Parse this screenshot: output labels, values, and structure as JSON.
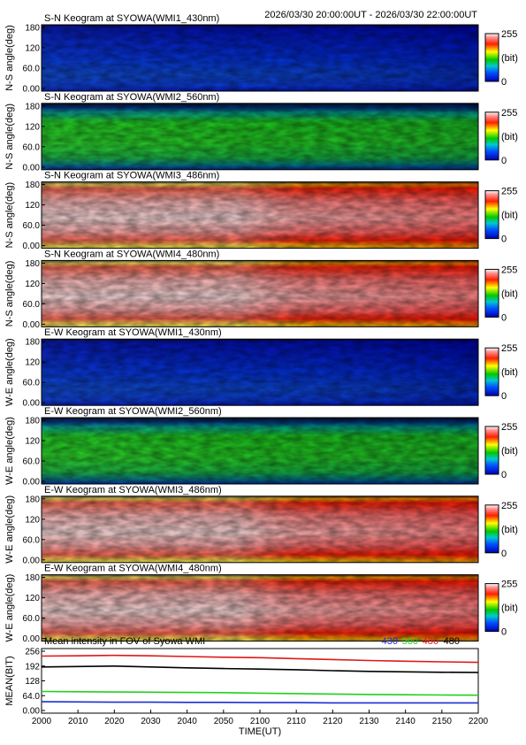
{
  "header_range": "2026/03/30 20:00:00UT - 2026/03/30 22:00:00UT",
  "colorbar": {
    "max_label": "255",
    "unit": "(bit)",
    "min_label": "0"
  },
  "panels": [
    {
      "title": "S-N Keogram at SYOWA(WMI1_430nm)",
      "ylabel": "N-S angle(deg)",
      "colormap": "blue"
    },
    {
      "title": "S-N Keogram at SYOWA(WMI2_560nm)",
      "ylabel": "N-S angle(deg)",
      "colormap": "green"
    },
    {
      "title": "S-N Keogram at SYOWA(WMI3_486nm)",
      "ylabel": "N-S angle(deg)",
      "colormap": "red"
    },
    {
      "title": "S-N Keogram at SYOWA(WMI4_480nm)",
      "ylabel": "N-S angle(deg)",
      "colormap": "red"
    },
    {
      "title": "E-W Keogram at SYOWA(WMI1_430nm)",
      "ylabel": "W-E angle(deg)",
      "colormap": "blue"
    },
    {
      "title": "E-W Keogram at SYOWA(WMI2_560nm)",
      "ylabel": "W-E angle(deg)",
      "colormap": "green"
    },
    {
      "title": "E-W Keogram at SYOWA(WMI3_486nm)",
      "ylabel": "W-E angle(deg)",
      "colormap": "red"
    },
    {
      "title": "E-W Keogram at SYOWA(WMI4_480nm)",
      "ylabel": "W-E angle(deg)",
      "colormap": "red"
    }
  ],
  "keogram_yticks": [
    "180",
    "120",
    "60.0",
    "0.00"
  ],
  "chart_data": {
    "type": "line",
    "title": "Mean intensity in FOV of Syowa WMI",
    "xlabel": "TIME(UT)",
    "ylabel": "MEAN(BIT)",
    "x_ticks": [
      "2000",
      "2010",
      "2020",
      "2030",
      "2040",
      "2050",
      "2100",
      "2110",
      "2120",
      "2130",
      "2140",
      "2150",
      "2200"
    ],
    "y_ticks": [
      "256",
      "192",
      "128",
      "64.0",
      "0.00"
    ],
    "ylim": [
      0,
      256
    ],
    "x": [
      "2000",
      "2010",
      "2020",
      "2030",
      "2040",
      "2050",
      "2100",
      "2110",
      "2120",
      "2130",
      "2140",
      "2150",
      "2200"
    ],
    "series": [
      {
        "name": "430",
        "color": "#1a2fd6",
        "values": [
          38,
          37,
          36,
          36,
          35,
          35,
          34,
          34,
          33,
          33,
          33,
          33,
          33
        ]
      },
      {
        "name": "560",
        "color": "#1fd11f",
        "values": [
          82,
          81,
          80,
          79,
          78,
          77,
          75,
          73,
          71,
          69,
          68,
          67,
          66
        ]
      },
      {
        "name": "486",
        "color": "#e01818",
        "values": [
          235,
          236,
          238,
          236,
          233,
          230,
          228,
          224,
          220,
          216,
          213,
          210,
          208
        ]
      },
      {
        "name": "480",
        "color": "#000000",
        "values": [
          188,
          190,
          192,
          188,
          184,
          181,
          179,
          176,
          172,
          169,
          167,
          165,
          164
        ]
      }
    ]
  }
}
